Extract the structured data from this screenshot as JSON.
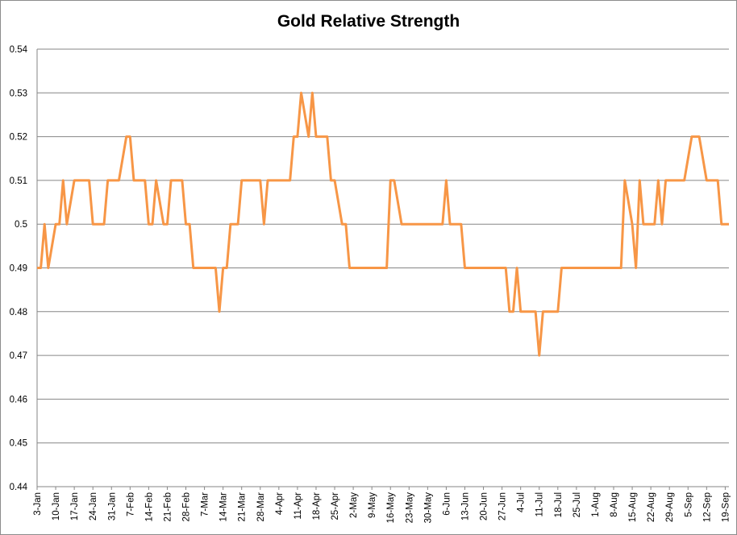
{
  "chart_data": {
    "type": "line",
    "title": "Gold Relative Strength",
    "xlabel": "",
    "ylabel": "",
    "ylim": [
      0.44,
      0.54
    ],
    "yticks": [
      "0.44",
      "0.45",
      "0.46",
      "0.47",
      "0.48",
      "0.49",
      "0.5",
      "0.51",
      "0.52",
      "0.53",
      "0.54"
    ],
    "x_tick_labels": [
      "3-Jan",
      "10-Jan",
      "17-Jan",
      "24-Jan",
      "31-Jan",
      "7-Feb",
      "14-Feb",
      "21-Feb",
      "28-Feb",
      "7-Mar",
      "14-Mar",
      "21-Mar",
      "28-Mar",
      "4-Apr",
      "11-Apr",
      "18-Apr",
      "25-Apr",
      "2-May",
      "9-May",
      "16-May",
      "23-May",
      "30-May",
      "6-Jun",
      "13-Jun",
      "20-Jun",
      "27-Jun",
      "4-Jul",
      "11-Jul",
      "18-Jul",
      "25-Jul",
      "1-Aug",
      "8-Aug",
      "15-Aug",
      "22-Aug",
      "29-Aug",
      "5-Sep",
      "12-Sep",
      "19-Sep"
    ],
    "grid": true,
    "legend": "none",
    "line_color": "#f79646",
    "series": [
      {
        "x": [
          "3-Jan",
          "4-Jan",
          "5-Jan",
          "6-Jan",
          "7-Jan",
          "10-Jan",
          "11-Jan",
          "12-Jan",
          "13-Jan",
          "14-Jan",
          "17-Jan",
          "18-Jan",
          "19-Jan",
          "20-Jan",
          "21-Jan",
          "24-Jan",
          "25-Jan",
          "26-Jan",
          "27-Jan",
          "28-Jan",
          "31-Jan",
          "1-Feb",
          "2-Feb",
          "3-Feb",
          "4-Feb",
          "7-Feb",
          "8-Feb",
          "9-Feb",
          "10-Feb",
          "11-Feb",
          "14-Feb",
          "15-Feb",
          "16-Feb",
          "17-Feb",
          "18-Feb",
          "21-Feb",
          "22-Feb",
          "23-Feb",
          "24-Feb",
          "25-Feb",
          "28-Feb",
          "1-Mar",
          "2-Mar",
          "3-Mar",
          "4-Mar",
          "7-Mar",
          "8-Mar",
          "9-Mar",
          "10-Mar",
          "11-Mar",
          "14-Mar",
          "15-Mar",
          "16-Mar",
          "17-Mar",
          "18-Mar",
          "21-Mar",
          "22-Mar",
          "23-Mar",
          "24-Mar",
          "25-Mar",
          "28-Mar",
          "29-Mar",
          "30-Mar",
          "31-Mar",
          "1-Apr",
          "4-Apr",
          "5-Apr",
          "6-Apr",
          "7-Apr",
          "8-Apr",
          "11-Apr",
          "12-Apr",
          "13-Apr",
          "14-Apr",
          "15-Apr",
          "18-Apr",
          "19-Apr",
          "20-Apr",
          "21-Apr",
          "22-Apr",
          "25-Apr",
          "26-Apr",
          "27-Apr",
          "28-Apr",
          "29-Apr",
          "2-May",
          "3-May",
          "4-May",
          "5-May",
          "6-May",
          "9-May",
          "10-May",
          "11-May",
          "12-May",
          "13-May",
          "16-May",
          "17-May",
          "18-May",
          "19-May",
          "20-May",
          "23-May",
          "24-May",
          "25-May",
          "26-May",
          "27-May",
          "30-May",
          "31-May",
          "1-Jun",
          "2-Jun",
          "3-Jun",
          "6-Jun",
          "7-Jun",
          "8-Jun",
          "9-Jun",
          "10-Jun",
          "13-Jun",
          "14-Jun",
          "15-Jun",
          "16-Jun",
          "17-Jun",
          "20-Jun",
          "21-Jun",
          "22-Jun",
          "23-Jun",
          "24-Jun",
          "27-Jun",
          "28-Jun",
          "29-Jun",
          "30-Jun",
          "1-Jul",
          "4-Jul",
          "5-Jul",
          "6-Jul",
          "7-Jul",
          "8-Jul",
          "11-Jul",
          "12-Jul",
          "13-Jul",
          "14-Jul",
          "15-Jul",
          "18-Jul",
          "19-Jul",
          "20-Jul",
          "21-Jul",
          "22-Jul",
          "25-Jul",
          "26-Jul",
          "27-Jul",
          "28-Jul",
          "29-Jul",
          "1-Aug",
          "2-Aug",
          "3-Aug",
          "4-Aug",
          "5-Aug",
          "8-Aug",
          "9-Aug",
          "10-Aug",
          "11-Aug",
          "12-Aug",
          "15-Aug",
          "16-Aug",
          "17-Aug",
          "18-Aug",
          "19-Aug",
          "22-Aug",
          "23-Aug",
          "24-Aug",
          "25-Aug",
          "26-Aug",
          "29-Aug",
          "30-Aug",
          "31-Aug",
          "1-Sep",
          "2-Sep",
          "5-Sep",
          "6-Sep",
          "7-Sep",
          "8-Sep",
          "9-Sep",
          "12-Sep",
          "13-Sep",
          "14-Sep",
          "15-Sep",
          "16-Sep",
          "19-Sep",
          "20-Sep"
        ],
        "y": [
          0.49,
          0.49,
          0.5,
          0.49,
          0.495,
          0.5,
          0.5,
          0.51,
          0.5,
          0.505,
          0.51,
          0.51,
          0.51,
          0.51,
          0.51,
          0.5,
          0.5,
          0.5,
          0.5,
          0.51,
          0.51,
          0.51,
          0.51,
          0.515,
          0.52,
          0.52,
          0.51,
          0.51,
          0.51,
          0.51,
          0.5,
          0.5,
          0.51,
          0.505,
          0.5,
          0.5,
          0.51,
          0.51,
          0.51,
          0.51,
          0.5,
          0.5,
          0.49,
          0.49,
          0.49,
          0.49,
          0.49,
          0.49,
          0.49,
          0.48,
          0.49,
          0.49,
          0.5,
          0.5,
          0.5,
          0.51,
          0.51,
          0.51,
          0.51,
          0.51,
          0.51,
          0.5,
          0.51,
          0.51,
          0.51,
          0.51,
          0.51,
          0.51,
          0.51,
          0.52,
          0.52,
          0.53,
          0.525,
          0.52,
          0.53,
          0.52,
          0.52,
          0.52,
          0.52,
          0.51,
          0.51,
          0.505,
          0.5,
          0.5,
          0.49,
          0.49,
          0.49,
          0.49,
          0.49,
          0.49,
          0.49,
          0.49,
          0.49,
          0.49,
          0.49,
          0.51,
          0.51,
          0.505,
          0.5,
          0.5,
          0.5,
          0.5,
          0.5,
          0.5,
          0.5,
          0.5,
          0.5,
          0.5,
          0.5,
          0.5,
          0.51,
          0.5,
          0.5,
          0.5,
          0.5,
          0.49,
          0.49,
          0.49,
          0.49,
          0.49,
          0.49,
          0.49,
          0.49,
          0.49,
          0.49,
          0.49,
          0.49,
          0.48,
          0.48,
          0.49,
          0.48,
          0.48,
          0.48,
          0.48,
          0.48,
          0.47,
          0.48,
          0.48,
          0.48,
          0.48,
          0.48,
          0.49,
          0.49,
          0.49,
          0.49,
          0.49,
          0.49,
          0.49,
          0.49,
          0.49,
          0.49,
          0.49,
          0.49,
          0.49,
          0.49,
          0.49,
          0.49,
          0.49,
          0.51,
          0.505,
          0.5,
          0.49,
          0.51,
          0.5,
          0.5,
          0.5,
          0.5,
          0.51,
          0.5,
          0.51,
          0.51,
          0.51,
          0.51,
          0.51,
          0.51,
          0.515,
          0.52,
          0.52,
          0.52,
          0.515,
          0.51,
          0.51,
          0.51,
          0.51,
          0.5,
          0.5,
          0.5
        ]
      }
    ]
  }
}
